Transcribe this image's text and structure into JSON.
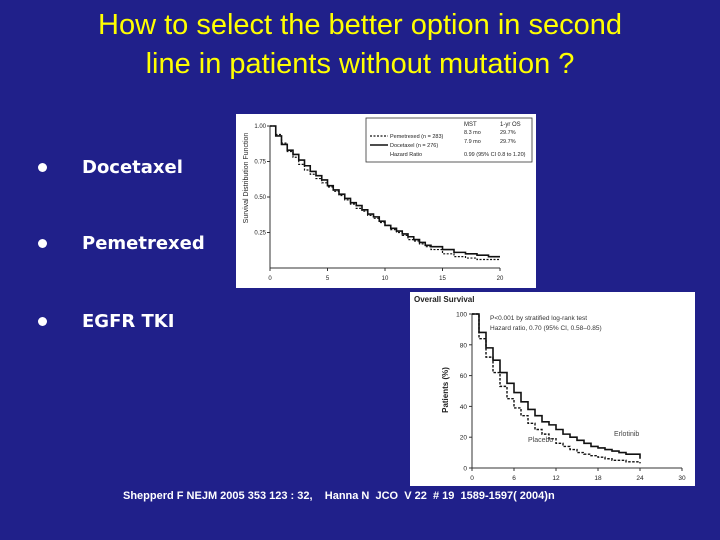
{
  "slide": {
    "title": "How to select  the better option in second\nline in patients   without mutation ?",
    "bullets": [
      {
        "label": "Docetaxel"
      },
      {
        "label": "Pemetrexed"
      },
      {
        "label": "EGFR TKI"
      }
    ],
    "citation": "Shepperd F NEJM 2005 353 123 : 32,    Hanna N  JCO  V 22  # 19  1589-1597( 2004)n"
  },
  "chart_data": [
    {
      "type": "line",
      "ylabel": "Survival Distribution Function",
      "yticks": [
        "1.00",
        "0.75",
        "0.50",
        "0.25"
      ],
      "xticks": [
        "0",
        "5",
        "10",
        "15",
        "20"
      ],
      "xlim": [
        0,
        20
      ],
      "ylim": [
        0,
        1
      ],
      "legend": {
        "header": [
          "MST",
          "1-yr OS"
        ],
        "rows": [
          {
            "label": "Pemetrexed (n = 283)",
            "mst": "8.3 mo",
            "os": "29.7%"
          },
          {
            "label": "Docetaxel (n = 276)",
            "mst": "7.9 mo",
            "os": "29.7%"
          },
          {
            "label": "Hazard Ratio",
            "mst": "0.99 (95% CI 0.8 to 1.20)",
            "os": ""
          }
        ]
      },
      "series": [
        {
          "name": "Pemetrexed (n = 283)",
          "x": [
            0,
            0.5,
            1,
            1.5,
            2,
            2.5,
            3,
            3.5,
            4,
            4.5,
            5,
            5.5,
            6,
            6.5,
            7,
            7.5,
            8,
            8.5,
            9,
            9.5,
            10,
            10.5,
            11,
            11.5,
            12,
            12.5,
            13,
            13.5,
            14,
            15,
            16,
            17,
            18,
            19,
            20
          ],
          "y": [
            1.0,
            0.94,
            0.88,
            0.82,
            0.78,
            0.73,
            0.69,
            0.66,
            0.63,
            0.6,
            0.57,
            0.54,
            0.51,
            0.48,
            0.45,
            0.42,
            0.4,
            0.37,
            0.35,
            0.32,
            0.3,
            0.27,
            0.25,
            0.23,
            0.2,
            0.19,
            0.17,
            0.15,
            0.13,
            0.1,
            0.08,
            0.07,
            0.06,
            0.06,
            0.06
          ]
        },
        {
          "name": "Docetaxel (n = 276)",
          "x": [
            0,
            0.5,
            1,
            1.5,
            2,
            2.5,
            3,
            3.5,
            4,
            4.5,
            5,
            5.5,
            6,
            6.5,
            7,
            7.5,
            8,
            8.5,
            9,
            9.5,
            10,
            10.5,
            11,
            11.5,
            12,
            12.5,
            13,
            13.5,
            14,
            15,
            16,
            17,
            18,
            19,
            20
          ],
          "y": [
            1.0,
            0.93,
            0.87,
            0.83,
            0.8,
            0.76,
            0.72,
            0.68,
            0.65,
            0.62,
            0.58,
            0.55,
            0.52,
            0.49,
            0.46,
            0.44,
            0.41,
            0.38,
            0.36,
            0.33,
            0.3,
            0.28,
            0.26,
            0.24,
            0.22,
            0.2,
            0.18,
            0.16,
            0.15,
            0.13,
            0.11,
            0.1,
            0.09,
            0.08,
            0.08
          ]
        }
      ]
    },
    {
      "type": "line",
      "title": "Overall Survival",
      "ylabel": "Patients (%)",
      "yticks": [
        "100",
        "80",
        "60",
        "40",
        "20",
        "0"
      ],
      "xticks": [
        "0",
        "6",
        "12",
        "18",
        "24",
        "30"
      ],
      "xlim": [
        0,
        30
      ],
      "ylim": [
        0,
        100
      ],
      "annotation_lines": [
        "P<0.001 by stratified log-rank test",
        "Hazard ratio, 0.70 (95% CI, 0.58–0.85)"
      ],
      "series": [
        {
          "name": "Erlotinib",
          "x": [
            0,
            1,
            2,
            3,
            4,
            5,
            6,
            7,
            8,
            9,
            10,
            11,
            12,
            13,
            14,
            15,
            16,
            17,
            18,
            19,
            20,
            21,
            22,
            24
          ],
          "y": [
            100,
            88,
            78,
            70,
            62,
            55,
            49,
            43,
            38,
            34,
            30,
            28,
            25,
            22,
            20,
            18,
            16,
            14,
            13,
            12,
            11,
            10,
            9,
            6
          ]
        },
        {
          "name": "Placebo",
          "x": [
            0,
            1,
            2,
            3,
            4,
            5,
            6,
            7,
            8,
            9,
            10,
            11,
            12,
            13,
            14,
            15,
            16,
            17,
            18,
            19,
            20,
            22,
            24
          ],
          "y": [
            100,
            84,
            72,
            62,
            53,
            45,
            39,
            34,
            29,
            25,
            22,
            19,
            16,
            14,
            12,
            10,
            9,
            8,
            7,
            6,
            5,
            4,
            3
          ]
        }
      ]
    }
  ]
}
